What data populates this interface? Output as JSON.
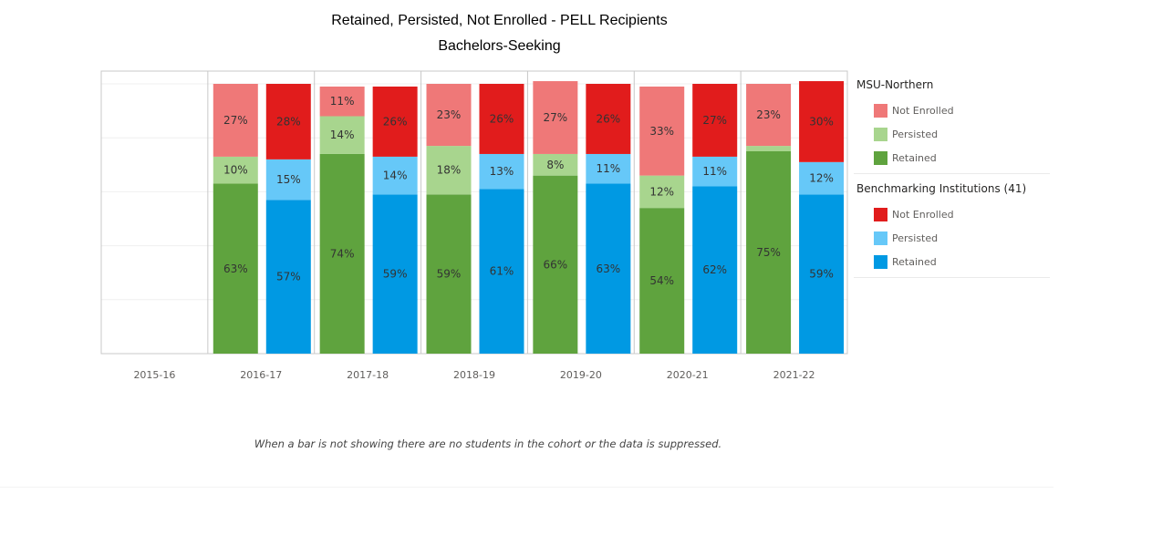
{
  "chart_data": {
    "type": "bar",
    "stacked": true,
    "title": "Retained, Persisted, Not Enrolled - PELL Recipients",
    "subtitle": "Bachelors-Seeking",
    "xlabel": "",
    "ylabel": "",
    "ylim": [
      0,
      100
    ],
    "grid": true,
    "legend_position": "right",
    "categories": [
      "2015-16",
      "2016-17",
      "2017-18",
      "2018-19",
      "2019-20",
      "2020-21",
      "2021-22"
    ],
    "groups": [
      {
        "name": "MSU-Northern",
        "series": [
          {
            "name": "Retained",
            "color": "#5fa33e",
            "values": [
              null,
              63,
              74,
              59,
              66,
              54,
              75
            ]
          },
          {
            "name": "Persisted",
            "color": "#a8d58e",
            "values": [
              null,
              10,
              14,
              18,
              8,
              12,
              2
            ]
          },
          {
            "name": "Not Enrolled",
            "color": "#ef7878",
            "values": [
              null,
              27,
              11,
              23,
              27,
              33,
              23
            ]
          }
        ]
      },
      {
        "name": "Benchmarking Institutions (41)",
        "series": [
          {
            "name": "Retained",
            "color": "#0099e3",
            "values": [
              null,
              57,
              59,
              61,
              63,
              62,
              59
            ]
          },
          {
            "name": "Persisted",
            "color": "#66c8f8",
            "values": [
              null,
              15,
              14,
              13,
              11,
              11,
              12
            ]
          },
          {
            "name": "Not Enrolled",
            "color": "#e11c1c",
            "values": [
              null,
              28,
              26,
              26,
              26,
              27,
              30
            ]
          }
        ]
      }
    ],
    "hidden_labels": [
      [
        "MSU-Northern",
        "Persisted",
        "2021-22"
      ]
    ]
  },
  "legend": {
    "groups": [
      {
        "title": "MSU-Northern",
        "items": [
          {
            "label": "Not Enrolled",
            "color": "#ef7878"
          },
          {
            "label": "Persisted",
            "color": "#a8d58e"
          },
          {
            "label": "Retained",
            "color": "#5fa33e"
          }
        ]
      },
      {
        "title": "Benchmarking Institutions (41)",
        "items": [
          {
            "label": "Not Enrolled",
            "color": "#e11c1c"
          },
          {
            "label": "Persisted",
            "color": "#66c8f8"
          },
          {
            "label": "Retained",
            "color": "#0099e3"
          }
        ]
      }
    ]
  },
  "footnote": "When a bar is not showing there are no students in the cohort or the data is suppressed."
}
